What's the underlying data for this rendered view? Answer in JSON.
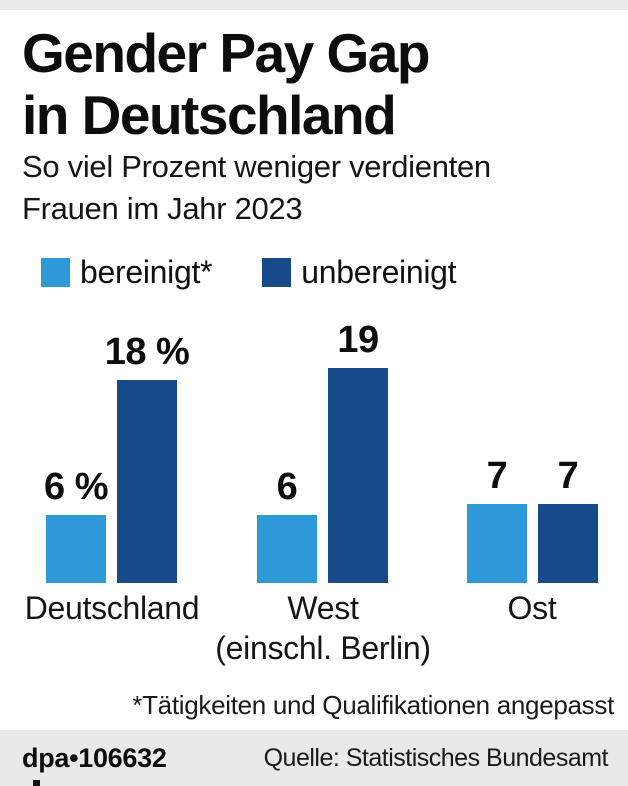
{
  "colors": {
    "light_blue": "#2D9AD7",
    "dark_blue": "#174A88",
    "footer_bg": "#E9E9E9",
    "top_strip": "#ECECEC"
  },
  "header": {
    "title_line1": "Gender Pay Gap",
    "title_line2": "in Deutschland",
    "subtitle_line1": "So viel Prozent weniger verdienten",
    "subtitle_line2": "Frauen im Jahr 2023"
  },
  "legend": {
    "items": [
      {
        "label": "bereinigt*",
        "color": "#2D9AD7"
      },
      {
        "label": "unbereinigt",
        "color": "#174A88"
      }
    ]
  },
  "chart_data": {
    "type": "bar",
    "title": "Gender Pay Gap in Deutschland",
    "subtitle": "So viel Prozent weniger verdienten Frauen im Jahr 2023",
    "unit": "percent less earned by women, 2023",
    "categories": [
      "Deutschland",
      "West (einschl. Berlin)",
      "Ost"
    ],
    "categories_display": [
      {
        "line1": "Deutschland",
        "line2": ""
      },
      {
        "line1": "West",
        "line2": "(einschl. Berlin)"
      },
      {
        "line1": "Ost",
        "line2": ""
      }
    ],
    "series": [
      {
        "name": "bereinigt*",
        "color": "#2D9AD7",
        "values": [
          6,
          6,
          7
        ],
        "labels": [
          "6 %",
          "6",
          "7"
        ]
      },
      {
        "name": "unbereinigt",
        "color": "#174A88",
        "values": [
          18,
          19,
          7
        ],
        "labels": [
          "18 %",
          "19",
          "7"
        ]
      }
    ],
    "ylim": [
      0,
      20
    ],
    "grid": false,
    "legend_position": "top",
    "value_labels": "above bars"
  },
  "footnote": "*Tätigkeiten und Qualifikationen angepasst",
  "footer": {
    "credit": "dpa•106632",
    "source": "Quelle: Statistisches Bundesamt"
  }
}
